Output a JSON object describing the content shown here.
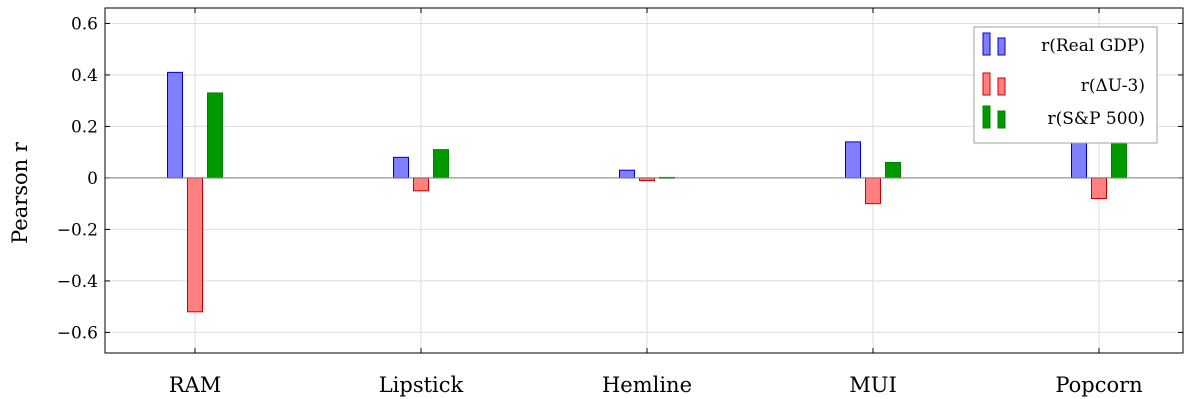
{
  "chart_data": {
    "type": "bar",
    "ylabel": "Pearson r",
    "ylim": [
      -0.68,
      0.66
    ],
    "yticks": [
      -0.6,
      -0.4,
      -0.2,
      0,
      0.2,
      0.4,
      0.6
    ],
    "ytick_labels": [
      "−0.6",
      "−0.4",
      "−0.2",
      "0",
      "0.2",
      "0.4",
      "0.6"
    ],
    "categories": [
      "RAM",
      "Lipstick",
      "Hemline",
      "MUI",
      "Popcorn"
    ],
    "grid": true,
    "legend_position": "top-right",
    "series": [
      {
        "name": "r(Real GDP)",
        "values": [
          0.41,
          0.08,
          0.03,
          0.14,
          0.15
        ],
        "fill": "#8080ff",
        "stroke": "#0000cc"
      },
      {
        "name": "r(ΔU-3)",
        "values": [
          -0.52,
          -0.05,
          -0.01,
          -0.1,
          -0.08
        ],
        "fill": "#ff8080",
        "stroke": "#cc0000"
      },
      {
        "name": "r(S&P 500)",
        "values": [
          0.33,
          0.11,
          0.002,
          0.06,
          0.18
        ],
        "fill": "#009900",
        "stroke": "#008000"
      }
    ]
  }
}
